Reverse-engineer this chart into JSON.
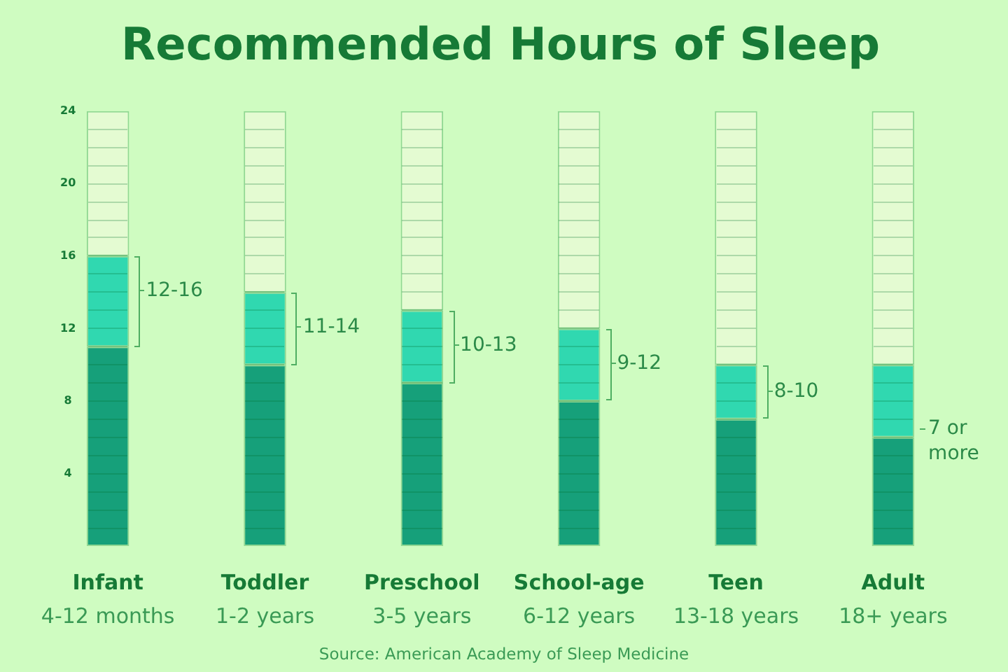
{
  "chart_data": {
    "type": "bar",
    "title": "Recommended Hours of Sleep",
    "categories": [
      "Infant\n4-12 months",
      "Toddler\n1-2 years",
      "Preschool\n3-5 years",
      "School-age\n6-12 years",
      "Teen\n13-18 years",
      "Adult\n18+ years"
    ],
    "series": [
      {
        "color": "#16a07a",
        "values": [
          11,
          10,
          9,
          8,
          7,
          6
        ]
      },
      {
        "color": "#30d8b0",
        "values": [
          5,
          4,
          4,
          4,
          3,
          4
        ],
        "value_labels": [
          "12-16",
          "11-14",
          "10-13",
          "9-12",
          "8-10",
          null
        ]
      },
      {
        "color": "#e4fbd2",
        "values": [
          8,
          10,
          11,
          12,
          14,
          14
        ]
      }
    ],
    "stacked": true,
    "ylim": [
      0,
      24
    ],
    "yticks": [
      4,
      8,
      12,
      16,
      20,
      24
    ],
    "annotations": [
      {
        "text": "7 or more",
        "x": "Adult\n18+ years",
        "y": 6
      },
      "Source: American Academy of Sleep Medicine"
    ]
  }
}
